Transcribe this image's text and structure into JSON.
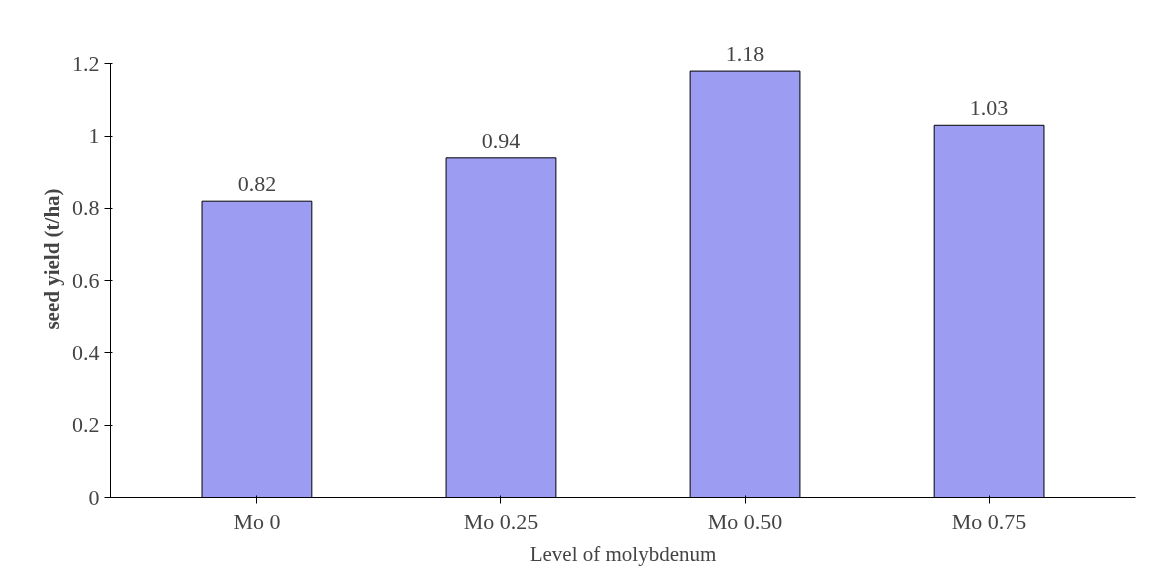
{
  "chart_data": {
    "type": "bar",
    "xlabel": "Level of molybdenum",
    "ylabel": "seed yield (t/ha)",
    "categories": [
      "Mo 0",
      "Mo 0.25",
      "Mo 0.50",
      "Mo 0.75"
    ],
    "values": [
      0.82,
      0.94,
      1.18,
      1.03
    ],
    "color": "#9c9cf2",
    "ylim": [
      0,
      1.2
    ],
    "yticks": [
      0,
      0.2,
      0.4,
      0.6,
      0.8,
      1,
      1.2
    ],
    "data_labels": true,
    "grid": false
  }
}
